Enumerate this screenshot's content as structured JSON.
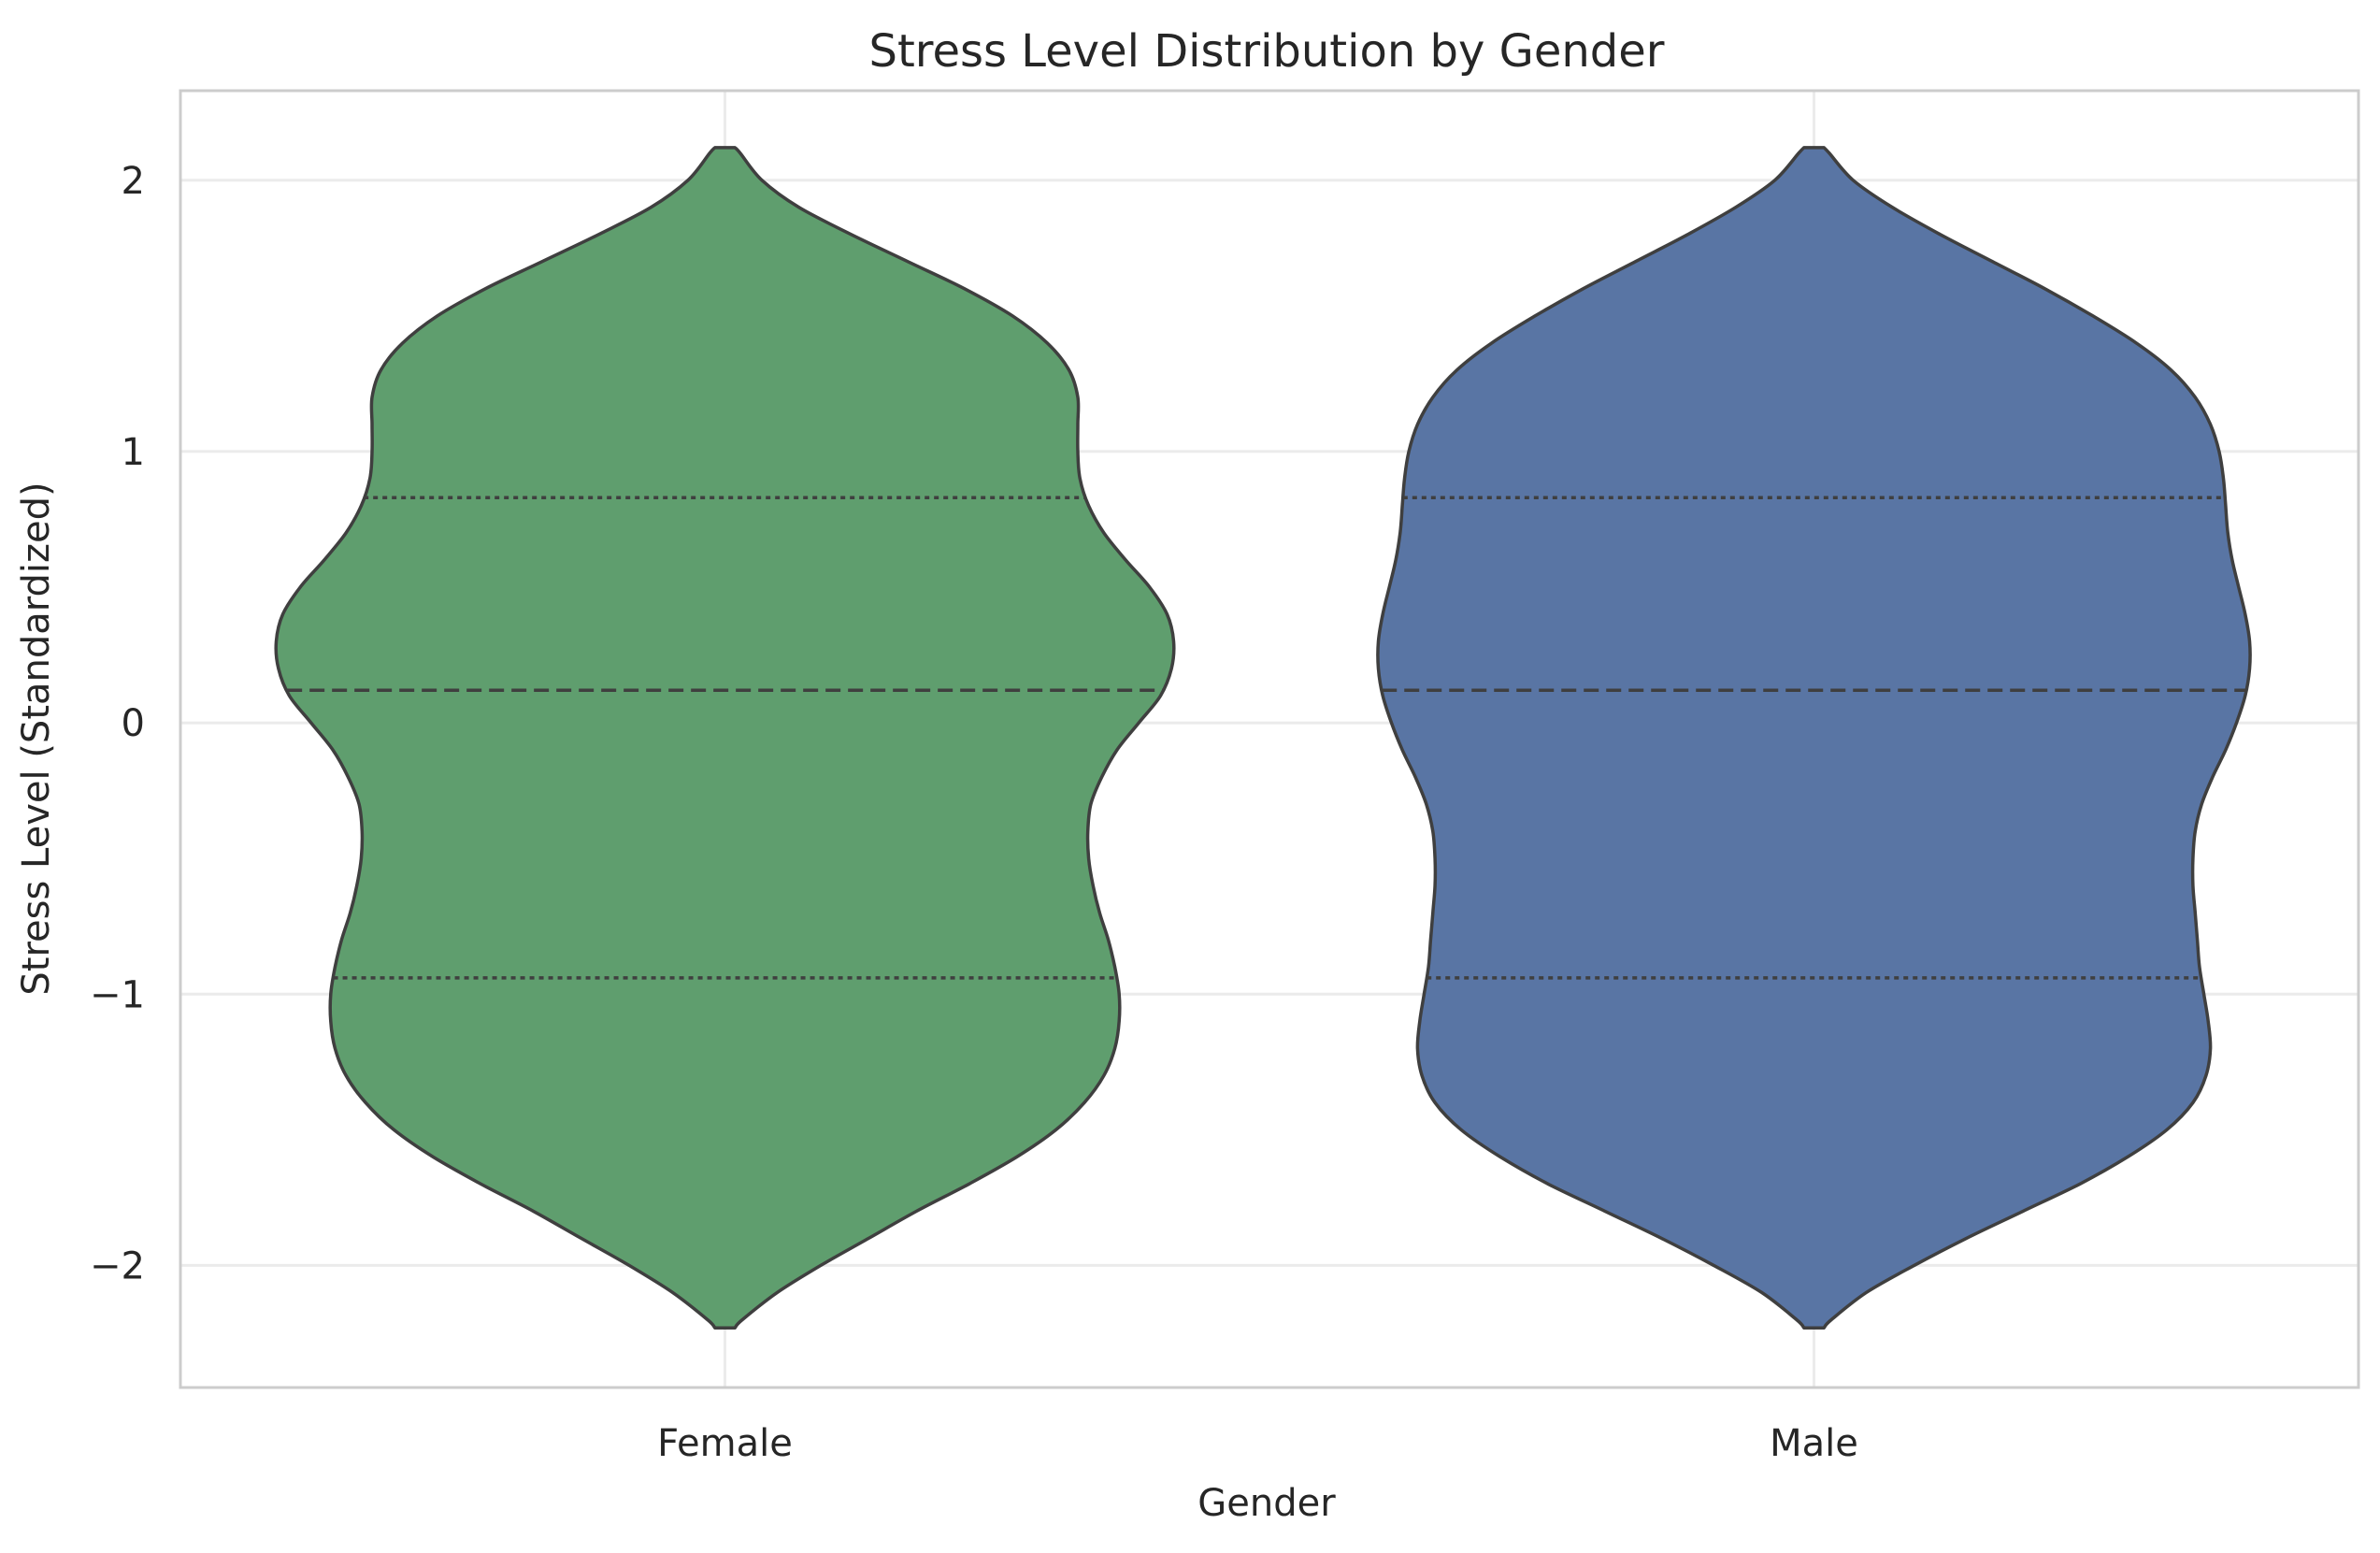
{
  "chart_data": {
    "type": "violin",
    "title": "Stress Level Distribution by Gender",
    "xlabel": "Gender",
    "ylabel": "Stress Level (Standardized)",
    "ylim": [
      -2.45,
      2.33
    ],
    "yticks": [
      2,
      1,
      0,
      -1,
      -2
    ],
    "ytick_labels": [
      "2",
      "1",
      "0",
      "−1",
      "−2"
    ],
    "categories": [
      "Female",
      "Male"
    ],
    "grid": true,
    "violins": [
      {
        "category": "Female",
        "color": "#5f9e6e",
        "y_min": -2.23,
        "y_max": 2.12,
        "quartiles": {
          "q1": -0.94,
          "median": 0.12,
          "q3": 0.83
        },
        "profile": [
          [
            -2.23,
            0.023
          ],
          [
            -2.2,
            0.04
          ],
          [
            -2.1,
            0.12
          ],
          [
            -2.0,
            0.22
          ],
          [
            -1.9,
            0.33
          ],
          [
            -1.8,
            0.44
          ],
          [
            -1.7,
            0.56
          ],
          [
            -1.6,
            0.67
          ],
          [
            -1.5,
            0.76
          ],
          [
            -1.4,
            0.825
          ],
          [
            -1.3,
            0.87
          ],
          [
            -1.2,
            0.895
          ],
          [
            -1.1,
            0.905
          ],
          [
            -1.0,
            0.905
          ],
          [
            -0.9,
            0.895
          ],
          [
            -0.8,
            0.88
          ],
          [
            -0.7,
            0.86
          ],
          [
            -0.6,
            0.845
          ],
          [
            -0.5,
            0.835
          ],
          [
            -0.4,
            0.833
          ],
          [
            -0.3,
            0.84
          ],
          [
            -0.2,
            0.865
          ],
          [
            -0.1,
            0.9
          ],
          [
            0.0,
            0.95
          ],
          [
            0.1,
            1.0
          ],
          [
            0.2,
            1.025
          ],
          [
            0.3,
            1.03
          ],
          [
            0.4,
            1.015
          ],
          [
            0.5,
            0.975
          ],
          [
            0.6,
            0.92
          ],
          [
            0.7,
            0.87
          ],
          [
            0.8,
            0.835
          ],
          [
            0.9,
            0.815
          ],
          [
            1.0,
            0.81
          ],
          [
            1.1,
            0.81
          ],
          [
            1.2,
            0.81
          ],
          [
            1.3,
            0.79
          ],
          [
            1.4,
            0.74
          ],
          [
            1.5,
            0.66
          ],
          [
            1.6,
            0.55
          ],
          [
            1.7,
            0.42
          ],
          [
            1.8,
            0.29
          ],
          [
            1.9,
            0.17
          ],
          [
            2.0,
            0.085
          ],
          [
            2.1,
            0.035
          ],
          [
            2.12,
            0.023
          ]
        ]
      },
      {
        "category": "Male",
        "color": "#5975a4",
        "y_min": -2.23,
        "y_max": 2.12,
        "quartiles": {
          "q1": -0.94,
          "median": 0.12,
          "q3": 0.83
        },
        "profile": [
          [
            -2.23,
            0.023
          ],
          [
            -2.2,
            0.04
          ],
          [
            -2.1,
            0.12
          ],
          [
            -2.0,
            0.23
          ],
          [
            -1.9,
            0.35
          ],
          [
            -1.8,
            0.48
          ],
          [
            -1.7,
            0.61
          ],
          [
            -1.6,
            0.72
          ],
          [
            -1.5,
            0.81
          ],
          [
            -1.4,
            0.87
          ],
          [
            -1.3,
            0.9
          ],
          [
            -1.2,
            0.91
          ],
          [
            -1.1,
            0.905
          ],
          [
            -1.0,
            0.895
          ],
          [
            -0.9,
            0.885
          ],
          [
            -0.8,
            0.88
          ],
          [
            -0.7,
            0.875
          ],
          [
            -0.6,
            0.87
          ],
          [
            -0.5,
            0.87
          ],
          [
            -0.4,
            0.875
          ],
          [
            -0.3,
            0.89
          ],
          [
            -0.2,
            0.915
          ],
          [
            -0.1,
            0.945
          ],
          [
            0.0,
            0.97
          ],
          [
            0.1,
            0.99
          ],
          [
            0.2,
            1.0
          ],
          [
            0.3,
            1.0
          ],
          [
            0.4,
            0.99
          ],
          [
            0.5,
            0.975
          ],
          [
            0.6,
            0.96
          ],
          [
            0.7,
            0.95
          ],
          [
            0.8,
            0.945
          ],
          [
            0.9,
            0.94
          ],
          [
            1.0,
            0.93
          ],
          [
            1.1,
            0.91
          ],
          [
            1.2,
            0.875
          ],
          [
            1.3,
            0.82
          ],
          [
            1.4,
            0.74
          ],
          [
            1.5,
            0.64
          ],
          [
            1.6,
            0.53
          ],
          [
            1.7,
            0.41
          ],
          [
            1.8,
            0.29
          ],
          [
            1.9,
            0.18
          ],
          [
            2.0,
            0.09
          ],
          [
            2.1,
            0.035
          ],
          [
            2.12,
            0.023
          ]
        ]
      }
    ]
  }
}
